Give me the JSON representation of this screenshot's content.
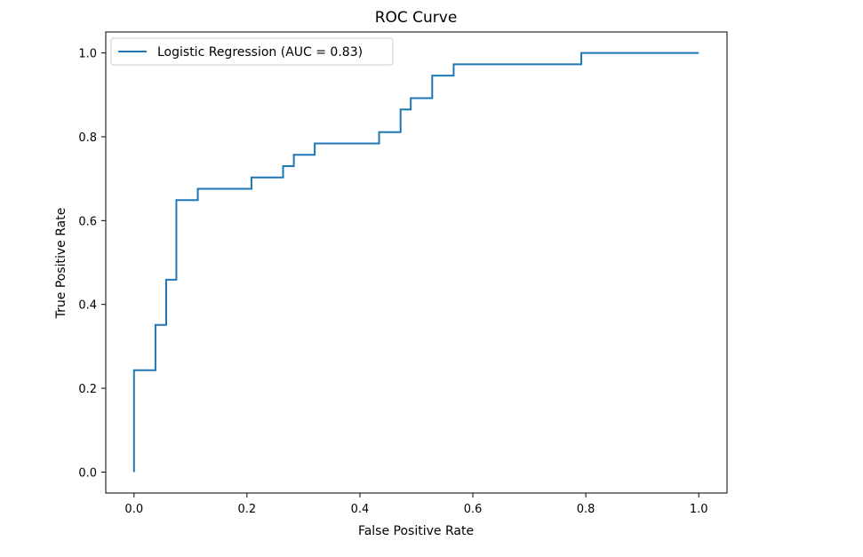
{
  "chart_data": {
    "type": "line",
    "title": "ROC Curve",
    "xlabel": "False Positive Rate",
    "ylabel": "True Positive Rate",
    "xlim": [
      -0.05,
      1.05
    ],
    "ylim": [
      -0.05,
      1.05
    ],
    "x_ticks": [
      0.0,
      0.2,
      0.4,
      0.6,
      0.8,
      1.0
    ],
    "x_tick_labels": [
      "0.0",
      "0.2",
      "0.4",
      "0.6",
      "0.8",
      "1.0"
    ],
    "y_ticks": [
      0.0,
      0.2,
      0.4,
      0.6,
      0.8,
      1.0
    ],
    "y_tick_labels": [
      "0.0",
      "0.2",
      "0.4",
      "0.6",
      "0.8",
      "1.0"
    ],
    "grid": false,
    "legend_position": "top-left",
    "series": [
      {
        "name": "Logistic Regression (AUC = 0.83)",
        "color": "#1f77b4",
        "x": [
          0.0,
          0.0,
          0.038,
          0.038,
          0.057,
          0.057,
          0.075,
          0.075,
          0.113,
          0.113,
          0.208,
          0.208,
          0.264,
          0.264,
          0.283,
          0.283,
          0.32,
          0.32,
          0.434,
          0.434,
          0.472,
          0.472,
          0.49,
          0.49,
          0.528,
          0.528,
          0.566,
          0.566,
          0.792,
          0.792,
          1.0
        ],
        "y": [
          0.0,
          0.243,
          0.243,
          0.351,
          0.351,
          0.459,
          0.459,
          0.649,
          0.649,
          0.676,
          0.676,
          0.703,
          0.703,
          0.73,
          0.73,
          0.757,
          0.757,
          0.784,
          0.784,
          0.811,
          0.811,
          0.865,
          0.865,
          0.892,
          0.892,
          0.946,
          0.946,
          0.973,
          0.973,
          1.0,
          1.0
        ]
      }
    ]
  }
}
